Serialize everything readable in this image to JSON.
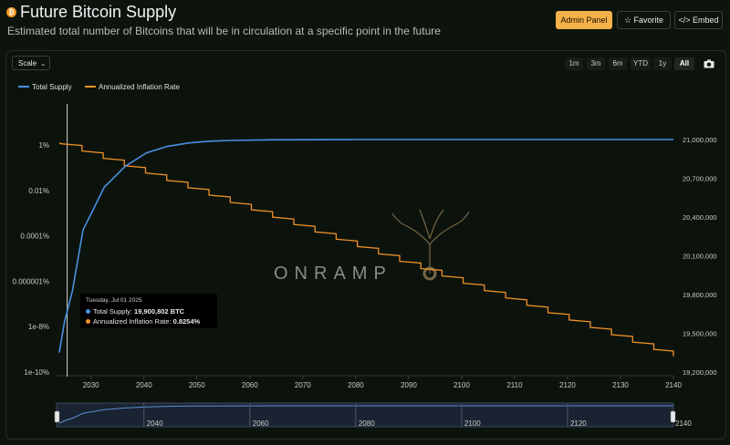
{
  "header": {
    "title": "Future Bitcoin Supply",
    "subtitle": "Estimated total number of Bitcoins that will be in circulation at a specific point in the future",
    "admin_label": "Admin Panel",
    "favorite_label": "Favorite",
    "embed_label": "Embed",
    "btc_glyph": "₿"
  },
  "controls": {
    "scale_label": "Scale",
    "ranges": [
      "1m",
      "3m",
      "6m",
      "YTD",
      "1y",
      "All"
    ],
    "active_range": "All"
  },
  "watermark": "ONRAMP",
  "tooltip": {
    "date": "Tuesday, Jul 01 2025",
    "supply_label": "Total Supply:",
    "supply_value": "19,900,802 BTC",
    "inflation_label": "Annualized Inflation Rate:",
    "inflation_value": "0.8254%"
  },
  "navigator": {
    "labels": [
      "2040",
      "2060",
      "2080",
      "2100",
      "2120",
      "2140"
    ]
  },
  "chart_data": {
    "type": "line",
    "x_range": [
      2023.5,
      2140
    ],
    "x_ticks": [
      "2030",
      "2040",
      "2050",
      "2060",
      "2070",
      "2080",
      "2090",
      "2100",
      "2110",
      "2120",
      "2130",
      "2140"
    ],
    "left_axis": {
      "scale": "log",
      "ticks": [
        "1%",
        "0.01%",
        "0.0001%",
        "0.000001%",
        "1e-8%",
        "1e-10%"
      ]
    },
    "right_axis": {
      "range": [
        19200000,
        21000000
      ],
      "ticks": [
        "21,000,000",
        "20,700,000",
        "20,400,000",
        "20,100,000",
        "19,800,000",
        "19,500,000",
        "19,200,000"
      ]
    },
    "legend_position": "top-left",
    "crosshair_x": 2025.5,
    "series": [
      {
        "name": "Total Supply",
        "axis": "right",
        "color": "#4a90e2",
        "x": [
          2024,
          2025,
          2026.5,
          2028.5,
          2032.5,
          2036.5,
          2040.5,
          2044.5,
          2048.5,
          2052.5,
          2056.5,
          2064,
          2080,
          2100,
          2120,
          2140
        ],
        "y": [
          19350000,
          19590000,
          19830000,
          20300000,
          20630000,
          20794000,
          20897000,
          20948000,
          20974000,
          20987000,
          20993000,
          20998000,
          20999800,
          20999990,
          21000000,
          21000000
        ]
      },
      {
        "name": "Annualized Inflation Rate",
        "axis": "left",
        "color": "#f0902a",
        "stepped": true,
        "step_years": 4,
        "first_step_end": 2024.3,
        "x_end": 2140,
        "y_start_log10": 0.08,
        "y_end_log10": -9.3
      }
    ]
  }
}
